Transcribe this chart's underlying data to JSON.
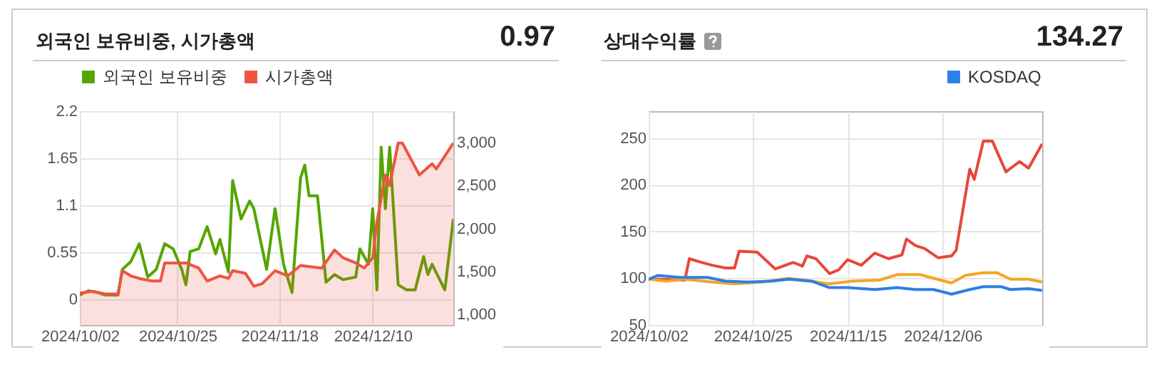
{
  "chart_data": [
    {
      "type": "line",
      "title": "외국인 보유비중, 시가총액",
      "annotations": [
        "0.97"
      ],
      "legend": "top left",
      "grid": true,
      "xlim": [
        "2024-10-02",
        "2024-12-29"
      ],
      "xticks": [
        {
          "value": "2024-10-02",
          "label": "2024/10/02"
        },
        {
          "value": "2024-10-25",
          "label": "2024/10/25"
        },
        {
          "value": "2024-11-18",
          "label": "2024/11/18"
        },
        {
          "value": "2024-12-10",
          "label": "2024/12/10"
        }
      ],
      "ylim": [
        -0.3,
        2.2
      ],
      "yticks": [
        0,
        0.55,
        1.1,
        1.65,
        2.2
      ],
      "y2lim": [
        880,
        3360
      ],
      "y2ticks": [
        {
          "value": 1000,
          "label": "1,000"
        },
        {
          "value": 1500,
          "label": "1,500"
        },
        {
          "value": 2000,
          "label": "2,000"
        },
        {
          "value": 2500,
          "label": "2,500"
        },
        {
          "value": 3000,
          "label": "3,000"
        }
      ],
      "series": [
        {
          "name": "외국인 보유비중",
          "color": "#56a400",
          "type": "line",
          "x": [
            "2024-10-02",
            "2024-10-04",
            "2024-10-06",
            "2024-10-08",
            "2024-10-11",
            "2024-10-12",
            "2024-10-14",
            "2024-10-16",
            "2024-10-18",
            "2024-10-20",
            "2024-10-22",
            "2024-10-24",
            "2024-10-26",
            "2024-10-27",
            "2024-10-28",
            "2024-10-30",
            "2024-11-01",
            "2024-11-03",
            "2024-11-04",
            "2024-11-06",
            "2024-11-07",
            "2024-11-09",
            "2024-11-11",
            "2024-11-12",
            "2024-11-15",
            "2024-11-17",
            "2024-11-19",
            "2024-11-21",
            "2024-11-23",
            "2024-11-24",
            "2024-11-25",
            "2024-11-27",
            "2024-11-29",
            "2024-12-01",
            "2024-12-03",
            "2024-12-06",
            "2024-12-07",
            "2024-12-09",
            "2024-12-10",
            "2024-12-11",
            "2024-12-12",
            "2024-12-13",
            "2024-12-14",
            "2024-12-16",
            "2024-12-18",
            "2024-12-20",
            "2024-12-22",
            "2024-12-23",
            "2024-12-24",
            "2024-12-27",
            "2024-12-29"
          ],
          "values": [
            0.05,
            0.1,
            0.08,
            0.05,
            0.05,
            0.35,
            0.44,
            0.65,
            0.26,
            0.35,
            0.65,
            0.59,
            0.35,
            0.17,
            0.56,
            0.59,
            0.85,
            0.53,
            0.7,
            0.32,
            1.39,
            0.94,
            1.15,
            1.06,
            0.35,
            1.06,
            0.41,
            0.08,
            1.42,
            1.57,
            1.21,
            1.21,
            0.2,
            0.29,
            0.23,
            0.26,
            0.59,
            0.41,
            1.06,
            0.11,
            1.78,
            1.06,
            1.78,
            0.17,
            0.11,
            0.11,
            0.5,
            0.29,
            0.41,
            0.11,
            0.94
          ]
        },
        {
          "name": "시가총액",
          "color": "#ee5541",
          "type": "area",
          "axis": "y2",
          "x": [
            "2024-10-02",
            "2024-10-05",
            "2024-10-08",
            "2024-10-11",
            "2024-10-12",
            "2024-10-14",
            "2024-10-16",
            "2024-10-19",
            "2024-10-21",
            "2024-10-22",
            "2024-10-27",
            "2024-10-30",
            "2024-11-01",
            "2024-11-04",
            "2024-11-06",
            "2024-11-07",
            "2024-11-10",
            "2024-11-12",
            "2024-11-14",
            "2024-11-17",
            "2024-11-20",
            "2024-11-23",
            "2024-11-28",
            "2024-12-01",
            "2024-12-03",
            "2024-12-06",
            "2024-12-08",
            "2024-12-10",
            "2024-12-11",
            "2024-12-13",
            "2024-12-14",
            "2024-12-16",
            "2024-12-17",
            "2024-12-21",
            "2024-12-24",
            "2024-12-25",
            "2024-12-29"
          ],
          "values": [
            1250,
            1270,
            1240,
            1240,
            1510,
            1450,
            1420,
            1390,
            1390,
            1600,
            1600,
            1540,
            1390,
            1450,
            1420,
            1510,
            1480,
            1330,
            1360,
            1510,
            1450,
            1570,
            1540,
            1750,
            1660,
            1600,
            1540,
            1660,
            2080,
            2620,
            2500,
            2990,
            2990,
            2620,
            2750,
            2690,
            2990
          ]
        }
      ]
    },
    {
      "type": "line",
      "title": "상대수익률",
      "annotations": [
        "134.27"
      ],
      "legend": "top right",
      "grid": true,
      "xlim": [
        "2024-10-02",
        "2024-12-28"
      ],
      "xticks": [
        {
          "value": "2024-10-02",
          "label": "2024/10/02"
        },
        {
          "value": "2024-10-25",
          "label": "2024/10/25"
        },
        {
          "value": "2024-11-15",
          "label": "2024/11/15"
        },
        {
          "value": "2024-12-06",
          "label": "2024/12/06"
        }
      ],
      "ylim": [
        50,
        279
      ],
      "yticks": [
        50,
        100,
        150,
        200,
        250
      ],
      "series": [
        {
          "color": "#e8473a",
          "x": [
            "2024-10-02",
            "2024-10-04",
            "2024-10-10",
            "2024-10-11",
            "2024-10-13",
            "2024-10-16",
            "2024-10-19",
            "2024-10-21",
            "2024-10-22",
            "2024-10-26",
            "2024-10-30",
            "2024-11-03",
            "2024-11-05",
            "2024-11-06",
            "2024-11-08",
            "2024-11-11",
            "2024-11-13",
            "2024-11-15",
            "2024-11-18",
            "2024-11-21",
            "2024-11-24",
            "2024-11-27",
            "2024-11-28",
            "2024-11-30",
            "2024-12-02",
            "2024-12-05",
            "2024-12-08",
            "2024-12-09",
            "2024-12-12",
            "2024-12-13",
            "2024-12-15",
            "2024-12-17",
            "2024-12-20",
            "2024-12-23",
            "2024-12-25",
            "2024-12-28"
          ],
          "values": [
            99,
            99,
            98,
            121,
            118,
            114,
            111,
            111,
            129,
            128,
            110,
            117,
            113,
            124,
            121,
            105,
            109,
            120,
            114,
            127,
            121,
            125,
            142,
            135,
            132,
            122,
            124,
            130,
            217,
            206,
            247,
            247,
            214,
            225,
            218,
            244
          ]
        },
        {
          "color": "#f5a623",
          "x": [
            "2024-10-02",
            "2024-10-06",
            "2024-10-10",
            "2024-10-16",
            "2024-10-21",
            "2024-10-27",
            "2024-11-02",
            "2024-11-07",
            "2024-11-11",
            "2024-11-16",
            "2024-11-22",
            "2024-11-26",
            "2024-12-01",
            "2024-12-04",
            "2024-12-08",
            "2024-12-11",
            "2024-12-15",
            "2024-12-18",
            "2024-12-21",
            "2024-12-25",
            "2024-12-28"
          ],
          "values": [
            99,
            97,
            99,
            96,
            94,
            96,
            100,
            97,
            94,
            97,
            98,
            104,
            104,
            100,
            95,
            103,
            106,
            106,
            99,
            99,
            96
          ]
        },
        {
          "name": "KOSDAQ",
          "color": "#2f7ee6",
          "x": [
            "2024-10-02",
            "2024-10-04",
            "2024-10-09",
            "2024-10-15",
            "2024-10-19",
            "2024-10-24",
            "2024-10-29",
            "2024-11-02",
            "2024-11-07",
            "2024-11-11",
            "2024-11-15",
            "2024-11-21",
            "2024-11-26",
            "2024-11-30",
            "2024-12-04",
            "2024-12-08",
            "2024-12-12",
            "2024-12-15",
            "2024-12-19",
            "2024-12-21",
            "2024-12-25",
            "2024-12-28"
          ],
          "values": [
            99,
            103,
            101,
            101,
            97,
            96,
            97,
            99,
            97,
            90,
            90,
            88,
            90,
            88,
            88,
            83,
            88,
            91,
            91,
            88,
            89,
            87
          ]
        }
      ]
    }
  ]
}
